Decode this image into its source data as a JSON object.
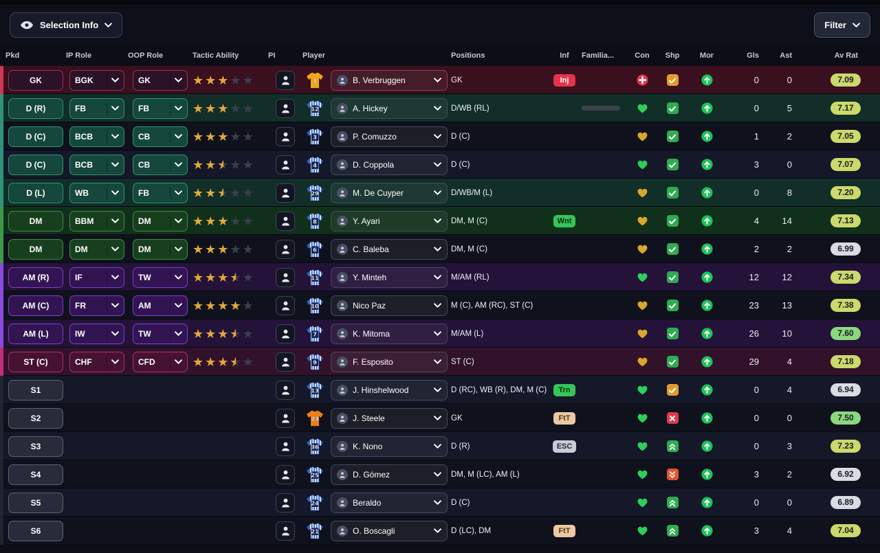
{
  "topbar": {
    "selection_info": "Selection Info",
    "filter": "Filter"
  },
  "columns": [
    "Pkd",
    "IP Role",
    "OOP Role",
    "Tactic Ability",
    "PI",
    "Player",
    "Positions",
    "Inf",
    "Familia...",
    "Con",
    "Shp",
    "Mor",
    "Gls",
    "Ast",
    "Av Rat"
  ],
  "colors": {
    "groups": {
      "gk": {
        "strip": "#cf3657",
        "btn_bg": "#2b1228",
        "btn_border": "#94365c",
        "tint": "#3a0f1e"
      },
      "def": {
        "strip": "#2e9377",
        "btn_bg": "#15473c",
        "btn_border": "#2e9377",
        "tint": "#112e29"
      },
      "dm": {
        "strip": "#3c9a46",
        "btn_bg": "#173f1e",
        "btn_border": "#3c8f46",
        "tint": "#11301b"
      },
      "am": {
        "strip": "#8a4ae0",
        "btn_bg": "#321453",
        "btn_border": "#7b3fd1",
        "tint": "#241239"
      },
      "st": {
        "strip": "#c12d7a",
        "btn_bg": "#461232",
        "btn_border": "#ad2e74",
        "tint": "#31122a"
      },
      "sub": {
        "strip": "#20242f",
        "btn_bg": "#282c3a",
        "btn_border": "#5c6274",
        "tint": "#161a26"
      }
    },
    "rating": {
      "high": "#8cd87f",
      "mid": "#ccd96b",
      "low": "#d9dce3"
    },
    "status": {
      "red": "#e5354d",
      "green": "#35c558",
      "tan": "#ecc9a2",
      "gray": "#c9cdd9",
      "heart_green": "#2fcd5a",
      "heart_gold": "#d9a62e",
      "bar_green": "#44dd44",
      "check_green": "#2fab50",
      "check_orange": "#e39b2d",
      "x_red": "#de3a4c",
      "down_orange": "#e0562d",
      "morale_green": "#1fc15a",
      "star_gold": "#e3a93c"
    }
  },
  "rows": [
    {
      "group": "gk",
      "tint": true,
      "pkd": "GK",
      "ip_role": "BGK",
      "oop_role": "GK",
      "stars": 3,
      "shirt": {
        "number": "1",
        "style": "gk_amber"
      },
      "player": "B. Verbruggen",
      "positions": "GK",
      "inf": {
        "label": "Inj",
        "type": "red"
      },
      "fam": 100,
      "fam_track": false,
      "con": "injured",
      "shp": {
        "symbol": "check",
        "color": "orange"
      },
      "gls": "0",
      "ast": "0",
      "rating": "7.09"
    },
    {
      "group": "def",
      "tint": true,
      "pkd": "D (R)",
      "ip_role": "FB",
      "oop_role": "FB",
      "stars": 3,
      "shirt": {
        "number": "12",
        "style": "stripes"
      },
      "player": "A. Hickey",
      "positions": "D/WB (RL)",
      "inf": null,
      "fam": 78,
      "fam_track": true,
      "con": "green",
      "shp": {
        "symbol": "check",
        "color": "green"
      },
      "gls": "0",
      "ast": "5",
      "rating": "7.17"
    },
    {
      "group": "def",
      "tint": false,
      "pkd": "D (C)",
      "ip_role": "BCB",
      "oop_role": "CB",
      "stars": 3,
      "shirt": {
        "number": "3",
        "style": "stripes"
      },
      "player": "P. Comuzzo",
      "positions": "D (C)",
      "inf": null,
      "fam": 100,
      "fam_track": false,
      "con": "gold",
      "shp": {
        "symbol": "check",
        "color": "green"
      },
      "gls": "1",
      "ast": "2",
      "rating": "7.05"
    },
    {
      "group": "def",
      "tint": false,
      "pkd": "D (C)",
      "ip_role": "BCB",
      "oop_role": "CB",
      "stars": 2.5,
      "shirt": {
        "number": "4",
        "style": "stripes"
      },
      "player": "D. Coppola",
      "positions": "D (C)",
      "inf": null,
      "fam": 100,
      "fam_track": false,
      "con": "green",
      "shp": {
        "symbol": "check",
        "color": "green"
      },
      "gls": "3",
      "ast": "0",
      "rating": "7.07"
    },
    {
      "group": "def",
      "tint": true,
      "pkd": "D (L)",
      "ip_role": "WB",
      "oop_role": "FB",
      "stars": 2.5,
      "shirt": {
        "number": "29",
        "style": "stripes"
      },
      "player": "M. De Cuyper",
      "positions": "D/WB/M (L)",
      "inf": null,
      "fam": 100,
      "fam_track": false,
      "con": "gold",
      "shp": {
        "symbol": "check",
        "color": "green"
      },
      "gls": "0",
      "ast": "8",
      "rating": "7.20"
    },
    {
      "group": "dm",
      "tint": true,
      "pkd": "DM",
      "ip_role": "BBM",
      "oop_role": "DM",
      "stars": 3,
      "shirt": {
        "number": "8",
        "style": "stripes"
      },
      "player": "Y. Ayari",
      "positions": "DM, M (C)",
      "inf": {
        "label": "Wnt",
        "type": "green"
      },
      "fam": 100,
      "fam_track": false,
      "con": "gold",
      "shp": {
        "symbol": "check",
        "color": "green"
      },
      "gls": "4",
      "ast": "14",
      "rating": "7.13"
    },
    {
      "group": "dm",
      "tint": false,
      "pkd": "DM",
      "ip_role": "DM",
      "oop_role": "DM",
      "stars": 3,
      "shirt": {
        "number": "6",
        "style": "stripes"
      },
      "player": "C. Baleba",
      "positions": "DM, M (C)",
      "inf": null,
      "fam": 100,
      "fam_track": false,
      "con": "gold",
      "shp": {
        "symbol": "check",
        "color": "green"
      },
      "gls": "2",
      "ast": "2",
      "rating": "6.99"
    },
    {
      "group": "am",
      "tint": true,
      "pkd": "AM (R)",
      "ip_role": "IF",
      "oop_role": "TW",
      "stars": 3.5,
      "shirt": {
        "number": "11",
        "style": "stripes"
      },
      "player": "Y. Minteh",
      "positions": "M/AM (RL)",
      "inf": null,
      "fam": 100,
      "fam_track": false,
      "con": "green",
      "shp": {
        "symbol": "check",
        "color": "green"
      },
      "gls": "12",
      "ast": "12",
      "rating": "7.34"
    },
    {
      "group": "am",
      "tint": false,
      "pkd": "AM (C)",
      "ip_role": "FR",
      "oop_role": "AM",
      "stars": 4,
      "shirt": {
        "number": "10",
        "style": "stripes"
      },
      "player": "Nico Paz",
      "positions": "M (C), AM (RC), ST (C)",
      "inf": null,
      "fam": 100,
      "fam_track": false,
      "con": "gold",
      "shp": {
        "symbol": "check",
        "color": "green"
      },
      "gls": "23",
      "ast": "13",
      "rating": "7.38"
    },
    {
      "group": "am",
      "tint": true,
      "pkd": "AM (L)",
      "ip_role": "IW",
      "oop_role": "TW",
      "stars": 3.5,
      "shirt": {
        "number": "7",
        "style": "stripes"
      },
      "player": "K. Mitoma",
      "positions": "M/AM (L)",
      "inf": null,
      "fam": 100,
      "fam_track": false,
      "con": "gold",
      "shp": {
        "symbol": "check",
        "color": "green"
      },
      "gls": "26",
      "ast": "10",
      "rating": "7.60"
    },
    {
      "group": "st",
      "tint": true,
      "pkd": "ST (C)",
      "ip_role": "CHF",
      "oop_role": "CFD",
      "stars": 3.5,
      "shirt": {
        "number": "9",
        "style": "stripes"
      },
      "player": "F. Esposito",
      "positions": "ST (C)",
      "inf": null,
      "fam": 100,
      "fam_track": false,
      "con": "gold",
      "shp": {
        "symbol": "check",
        "color": "green"
      },
      "gls": "29",
      "ast": "4",
      "rating": "7.18"
    },
    {
      "group": "sub",
      "tint": false,
      "pkd": "S1",
      "ip_role": null,
      "oop_role": null,
      "stars": null,
      "shirt": {
        "number": "13",
        "style": "stripes"
      },
      "player": "J. Hinshelwood",
      "positions": "D (RC), WB (R), DM, M (C)",
      "inf": {
        "label": "Trn",
        "type": "green"
      },
      "fam": null,
      "fam_track": false,
      "con": "green",
      "shp": {
        "symbol": "check",
        "color": "orange"
      },
      "gls": "0",
      "ast": "4",
      "rating": "6.94"
    },
    {
      "group": "sub",
      "tint": false,
      "pkd": "S2",
      "ip_role": null,
      "oop_role": null,
      "stars": null,
      "shirt": {
        "number": "23",
        "style": "gk_orange"
      },
      "player": "J. Steele",
      "positions": "GK",
      "inf": {
        "label": "FtT",
        "type": "tan"
      },
      "fam": 8,
      "fam_track": false,
      "con": "green",
      "shp": {
        "symbol": "x",
        "color": "red"
      },
      "gls": "0",
      "ast": "0",
      "rating": "7.50"
    },
    {
      "group": "sub",
      "tint": false,
      "pkd": "S3",
      "ip_role": null,
      "oop_role": null,
      "stars": null,
      "shirt": {
        "number": "36",
        "style": "stripes"
      },
      "player": "K. Nono",
      "positions": "D (R)",
      "inf": {
        "label": "ESC",
        "type": "gray"
      },
      "fam": 8,
      "fam_track": false,
      "con": "green",
      "shp": {
        "symbol": "up",
        "color": "green"
      },
      "gls": "0",
      "ast": "3",
      "rating": "7.23"
    },
    {
      "group": "sub",
      "tint": false,
      "pkd": "S4",
      "ip_role": null,
      "oop_role": null,
      "stars": null,
      "shirt": {
        "number": "25",
        "style": "stripes"
      },
      "player": "D. Gómez",
      "positions": "DM, M (LC), AM (L)",
      "inf": null,
      "fam": null,
      "fam_track": false,
      "con": "green",
      "shp": {
        "symbol": "down",
        "color": "redorange"
      },
      "gls": "3",
      "ast": "2",
      "rating": "6.92"
    },
    {
      "group": "sub",
      "tint": false,
      "pkd": "S5",
      "ip_role": null,
      "oop_role": null,
      "stars": null,
      "shirt": {
        "number": "24",
        "style": "stripes"
      },
      "player": "Beraldo",
      "positions": "D (C)",
      "inf": null,
      "fam": null,
      "fam_track": false,
      "con": "green",
      "shp": {
        "symbol": "up",
        "color": "green"
      },
      "gls": "0",
      "ast": "0",
      "rating": "6.89"
    },
    {
      "group": "sub",
      "tint": false,
      "pkd": "S6",
      "ip_role": null,
      "oop_role": null,
      "stars": null,
      "shirt": {
        "number": "21",
        "style": "stripes"
      },
      "player": "O. Boscagli",
      "positions": "D (LC), DM",
      "inf": {
        "label": "FtT",
        "type": "tan"
      },
      "fam": null,
      "fam_track": false,
      "con": "green",
      "shp": {
        "symbol": "up",
        "color": "green"
      },
      "gls": "3",
      "ast": "4",
      "rating": "7.04"
    }
  ]
}
